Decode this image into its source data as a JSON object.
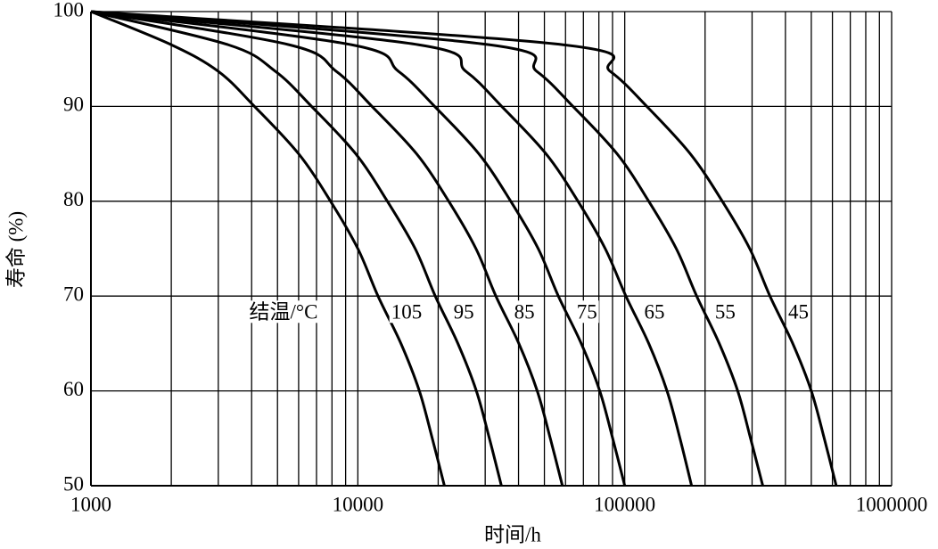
{
  "chart_data": {
    "type": "line",
    "xlabel": "时间/h",
    "ylabel": "寿命 (%)",
    "annotation": "结温/°C",
    "xscale": "log",
    "grid": true,
    "xlim": [
      1000,
      1000000
    ],
    "xticks": [
      1000,
      10000,
      100000,
      1000000
    ],
    "ylim": [
      50,
      100
    ],
    "yticks": [
      50,
      60,
      70,
      80,
      90,
      100
    ],
    "series": [
      {
        "name": "105",
        "color": "#000000",
        "x": [
          1000,
          2000,
          3000,
          4100,
          6000,
          7900,
          10000,
          11900,
          14500,
          17000,
          19000,
          21100
        ],
        "values": [
          100,
          96.5,
          93.7,
          90,
          85,
          80,
          75,
          70,
          65,
          60,
          55,
          50
        ]
      },
      {
        "name": "95",
        "color": "#000000",
        "x": [
          1000,
          3270,
          4910,
          6710,
          9820,
          12900,
          16400,
          19500,
          23700,
          27800,
          31100,
          34500
        ],
        "values": [
          100,
          96.5,
          93.7,
          90,
          85,
          80,
          75,
          70,
          65,
          60,
          55,
          50
        ]
      },
      {
        "name": "85",
        "color": "#000000",
        "x": [
          1000,
          5530,
          8300,
          11300,
          16600,
          21900,
          27700,
          32900,
          40100,
          47000,
          52600,
          58400
        ],
        "values": [
          100,
          96.5,
          93.7,
          90,
          85,
          80,
          75,
          70,
          65,
          60,
          55,
          50
        ]
      },
      {
        "name": "75",
        "color": "#000000",
        "x": [
          1000,
          9480,
          14200,
          19400,
          28400,
          37400,
          47400,
          56400,
          68700,
          80600,
          90100,
          100000
        ],
        "values": [
          100,
          96.5,
          93.7,
          90,
          85,
          80,
          75,
          70,
          65,
          60,
          55,
          50
        ]
      },
      {
        "name": "65",
        "color": "#000000",
        "x": [
          1000,
          16900,
          25400,
          34600,
          50700,
          66800,
          84500,
          101000,
          123000,
          144000,
          161000,
          178000
        ],
        "values": [
          100,
          96.5,
          93.7,
          90,
          85,
          80,
          75,
          70,
          65,
          60,
          55,
          50
        ]
      },
      {
        "name": "55",
        "color": "#000000",
        "x": [
          1000,
          31200,
          46800,
          64000,
          93600,
          123000,
          156000,
          186000,
          226000,
          265000,
          296000,
          329000
        ],
        "values": [
          100,
          96.5,
          93.7,
          90,
          85,
          80,
          75,
          70,
          65,
          60,
          55,
          50
        ]
      },
      {
        "name": "45",
        "color": "#000000",
        "x": [
          1000,
          58800,
          88200,
          121000,
          176000,
          232000,
          294000,
          350000,
          426000,
          500000,
          559000,
          620000
        ],
        "values": [
          100,
          96.5,
          93.7,
          90,
          85,
          80,
          75,
          70,
          65,
          60,
          55,
          50
        ]
      }
    ]
  }
}
